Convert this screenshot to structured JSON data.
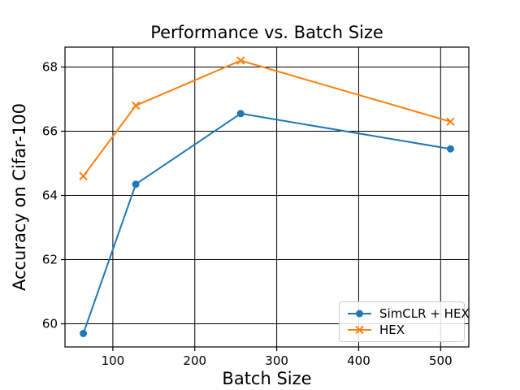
{
  "figure": {
    "background": "#ffffff",
    "axes_border_color": "#000000",
    "grid_color": "#000000"
  },
  "chart_data": {
    "type": "line",
    "title": "Performance vs. Batch Size",
    "xlabel": "Batch Size",
    "ylabel": "Accuracy on Cifar-100",
    "x": [
      64,
      128,
      256,
      512
    ],
    "series": [
      {
        "name": "SimCLR + HEX",
        "color": "#1f77b4",
        "marker": "circle",
        "values": [
          59.7,
          64.35,
          66.55,
          65.45
        ]
      },
      {
        "name": "HEX",
        "color": "#ff7f0e",
        "marker": "x",
        "values": [
          64.6,
          66.8,
          68.2,
          66.3
        ]
      }
    ],
    "xlim": [
      41.6,
      534.4
    ],
    "ylim": [
      59.28,
      68.62
    ],
    "xticks": [
      100,
      200,
      300,
      400,
      500
    ],
    "yticks": [
      60,
      62,
      64,
      66,
      68
    ],
    "grid": true,
    "legend_position": "lower right"
  }
}
